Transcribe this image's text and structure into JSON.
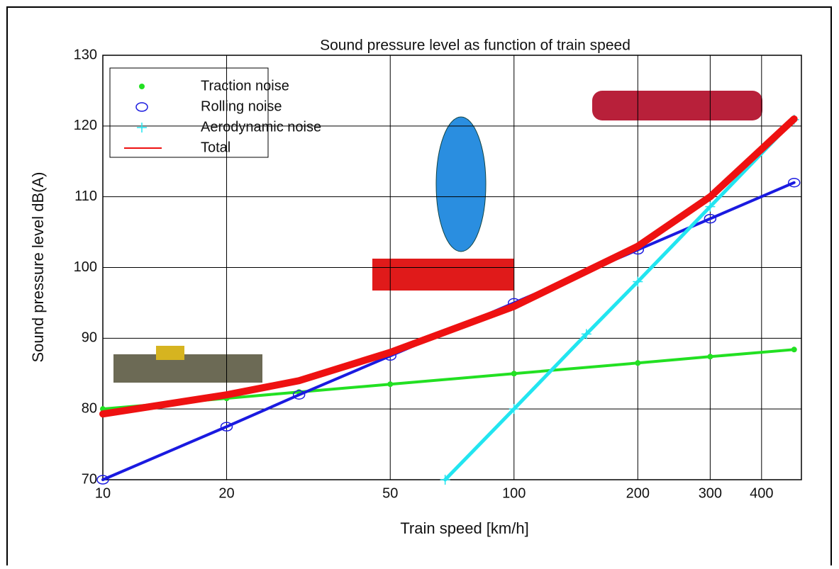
{
  "chart_data": {
    "type": "line",
    "title": "Sound pressure level as function of train speed",
    "x_label": "Train speed [km/h]",
    "y_label": "Sound pressure level dB(A)",
    "log_x": true,
    "grid": true,
    "legend": "upper left",
    "xlim": [
      10,
      500
    ],
    "ylim": [
      70,
      130
    ],
    "xticks": [
      10,
      20,
      50,
      100,
      200,
      300,
      400
    ],
    "yticks": [
      70,
      80,
      90,
      100,
      110,
      120,
      130
    ],
    "series": [
      {
        "name": "Traction noise",
        "color": "#22e022",
        "marker": "dot",
        "width": 4,
        "x": [
          10,
          20,
          30,
          50,
          100,
          200,
          300,
          480
        ],
        "values": [
          80,
          81.5,
          82.4,
          83.5,
          85,
          86.5,
          87.4,
          88.4
        ]
      },
      {
        "name": "Rolling noise",
        "color": "#1a1ae0",
        "marker": "circle",
        "width": 4,
        "x": [
          10,
          20,
          30,
          50,
          100,
          200,
          300,
          480
        ],
        "values": [
          70,
          77.5,
          82,
          87.5,
          95,
          102.5,
          106.9,
          112
        ]
      },
      {
        "name": "Aerodynamic noise",
        "color": "#22e5f0",
        "marker": "plus",
        "width": 5,
        "x": [
          68,
          100,
          150,
          200,
          300,
          480
        ],
        "values": [
          70,
          80,
          90.6,
          98,
          108.6,
          120.9
        ]
      },
      {
        "name": "Total",
        "color": "#ee1111",
        "marker": "none",
        "width": 10,
        "x": [
          10,
          20,
          30,
          50,
          100,
          200,
          300,
          480
        ],
        "values": [
          79.3,
          82,
          84,
          88,
          94.5,
          103,
          110,
          121
        ]
      }
    ]
  }
}
